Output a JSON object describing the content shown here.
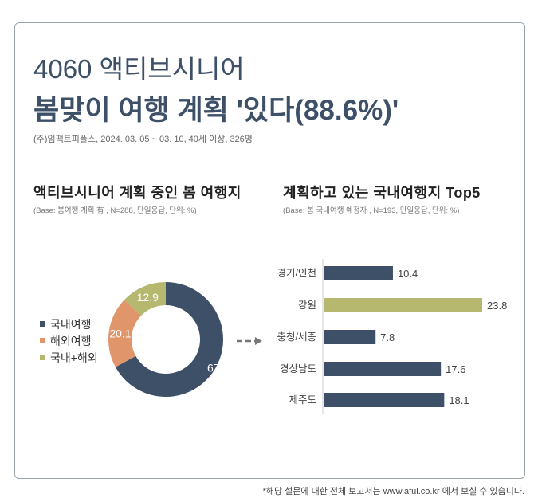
{
  "header": {
    "title_line1": "4060 액티브시니어",
    "title_line2": "봄맞이 여행 계획 '있다(88.6%)'",
    "source": "(주)임팩트피플스, 2024. 03. 05 ~ 03. 10, 40세 이상, 326명"
  },
  "footer": "*해당 설문에 대한 전체 보고서는 www.aful.co.kr 에서 보실 수 있습니다.",
  "chart_data": [
    {
      "type": "pie",
      "donut": true,
      "title": "액티브시니어 계획 중인 봄 여행지",
      "subtitle": "(Base: 봄여행 계획 有 , N=288, 단일응답, 단위: %)",
      "categories": [
        "국내여행",
        "해외여행",
        "국내+해외"
      ],
      "values": [
        67,
        20.1,
        12.9
      ],
      "data_labels": [
        "67",
        "20.1",
        "12.9"
      ],
      "colors": [
        "#3d5068",
        "#e0956a",
        "#b5b86e"
      ],
      "legend": "left"
    },
    {
      "type": "bar",
      "orientation": "horizontal",
      "title": "계획하고 있는 국내여행지 Top5",
      "subtitle": "(Base: 봄 국내여행 예정자 , N=193, 단일응답, 단위: %)",
      "categories": [
        "경기/인천",
        "강원",
        "충청/세종",
        "경상남도",
        "제주도"
      ],
      "values": [
        10.4,
        23.8,
        7.8,
        17.6,
        18.1
      ],
      "data_labels": [
        "10.4",
        "23.8",
        "7.8",
        "17.6",
        "18.1"
      ],
      "colors": [
        "#3d5068",
        "#b5b86e",
        "#3d5068",
        "#3d5068",
        "#3d5068"
      ]
    }
  ]
}
